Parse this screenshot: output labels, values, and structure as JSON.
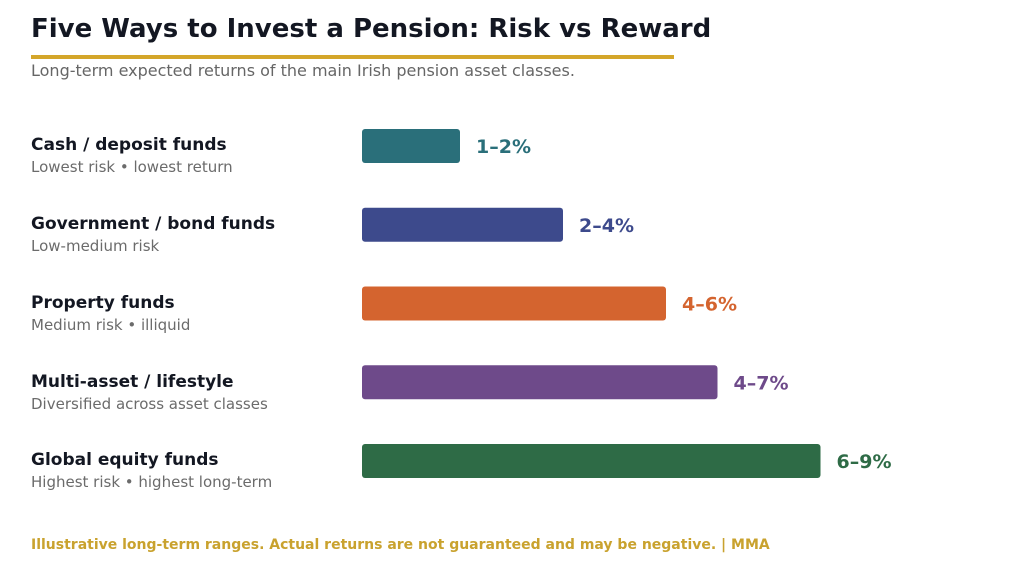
{
  "title": "Five Ways to Invest a Pension: Risk vs Reward",
  "subtitle": "Long-term expected returns of the main Irish pension asset classes.",
  "footer": "Illustrative long-term ranges. Actual returns are not guaranteed and may be negative.  |  MMA",
  "accent_color": "#d4a62a",
  "chart_data": {
    "type": "bar",
    "orientation": "horizontal",
    "title": "Five Ways to Invest a Pension: Risk vs Reward",
    "subtitle": "Long-term expected returns of the main Irish pension asset classes.",
    "unit": "%",
    "grid": false,
    "legend": "none",
    "categories": [
      {
        "name": "Cash / deposit funds",
        "description": "Lowest risk • lowest return",
        "low": 1,
        "high": 2,
        "label": "1–2%",
        "color": "#2a6f7a"
      },
      {
        "name": "Government / bond funds",
        "description": "Low-medium risk",
        "low": 2,
        "high": 4,
        "label": "2–4%",
        "color": "#3d4a8c"
      },
      {
        "name": "Property funds",
        "description": "Medium risk • illiquid",
        "low": 4,
        "high": 6,
        "label": "4–6%",
        "color": "#d4642f"
      },
      {
        "name": "Multi-asset / lifestyle",
        "description": "Diversified across asset classes",
        "low": 4,
        "high": 7,
        "label": "4–7%",
        "color": "#6e4a8a"
      },
      {
        "name": "Global equity funds",
        "description": "Highest risk • highest long-term",
        "low": 6,
        "high": 9,
        "label": "6–9%",
        "color": "#2e6b46"
      }
    ]
  }
}
